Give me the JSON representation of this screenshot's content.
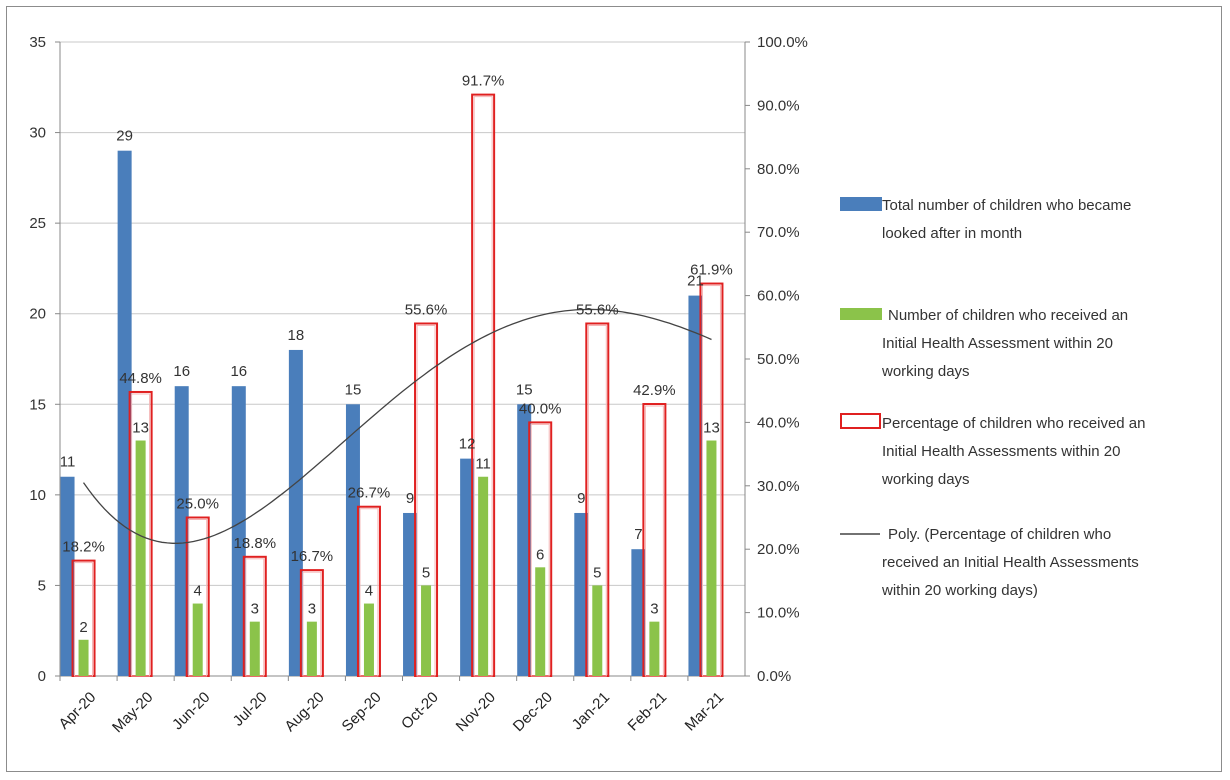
{
  "chart_data": {
    "type": "bar",
    "categories": [
      "Apr-20",
      "May-20",
      "Jun-20",
      "Jul-20",
      "Aug-20",
      "Sep-20",
      "Oct-20",
      "Nov-20",
      "Dec-20",
      "Jan-21",
      "Feb-21",
      "Mar-21"
    ],
    "series": [
      {
        "name": "Total number of children who became looked after in month",
        "axis": "left",
        "color": "#4a7ebb",
        "values": [
          11,
          29,
          16,
          16,
          18,
          15,
          9,
          12,
          15,
          9,
          7,
          21
        ]
      },
      {
        "name": "Number of children who received an Initial Health Assessment within 20 working days",
        "axis": "left",
        "color": "#8bc34a",
        "values": [
          2,
          13,
          4,
          3,
          3,
          4,
          5,
          11,
          6,
          5,
          3,
          13
        ]
      },
      {
        "name": "Percentage of children who received an Initial Health Assessments within 20 working days",
        "axis": "right",
        "color": "#e02020",
        "values": [
          18.2,
          44.8,
          25.0,
          18.8,
          16.7,
          26.7,
          55.6,
          91.7,
          40.0,
          55.6,
          42.9,
          61.9
        ]
      }
    ],
    "trendline": {
      "name": "Poly. (Percentage of children who received an Initial Health Assessments within 20 working days)",
      "type": "polynomial",
      "color": "#444444"
    },
    "y_left": {
      "ylim": [
        0,
        35
      ],
      "ticks": [
        "0",
        "5",
        "10",
        "15",
        "20",
        "25",
        "30",
        "35"
      ]
    },
    "y_right": {
      "ylim": [
        0,
        100
      ],
      "ticks": [
        "0.0%",
        "10.0%",
        "20.0%",
        "30.0%",
        "40.0%",
        "50.0%",
        "60.0%",
        "70.0%",
        "80.0%",
        "90.0%",
        "100.0%"
      ]
    },
    "value_labels": {
      "total": [
        "11",
        "29",
        "16",
        "16",
        "18",
        "15",
        "9",
        "12",
        "15",
        "9",
        "7",
        "21"
      ],
      "iha": [
        "2",
        "13",
        "4",
        "3",
        "3",
        "4",
        "5",
        "11",
        "6",
        "5",
        "3",
        "13"
      ],
      "pct": [
        "18.2%",
        "44.8%",
        "25.0%",
        "18.8%",
        "16.7%",
        "26.7%",
        "55.6%",
        "91.7%",
        "40.0%",
        "55.6%",
        "42.9%",
        "61.9%"
      ]
    },
    "grid": true,
    "legend_position": "right"
  },
  "legend": {
    "total": [
      "Total number of children who became",
      "looked after in month"
    ],
    "iha": [
      "Number of children who received an",
      "Initial Health Assessment within 20",
      "working days"
    ],
    "pct": [
      "Percentage of children who received an",
      "Initial Health Assessments within 20",
      "working days"
    ],
    "poly": [
      "Poly. (Percentage of children who",
      "received an Initial Health Assessments",
      "within 20 working days)"
    ]
  }
}
